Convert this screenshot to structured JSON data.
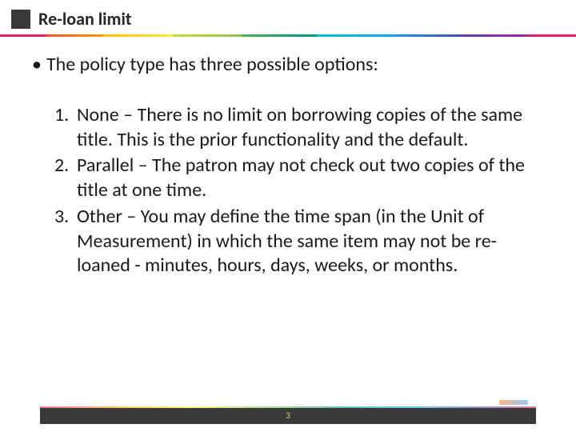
{
  "header": {
    "title": "Re-loan limit",
    "title_block_color": "#3a3a3a",
    "title_font_size": 22,
    "title_font_weight": 700
  },
  "content": {
    "intro_bullet": "•",
    "intro_text": "The policy type has three possible options:",
    "body_font_size": 24,
    "options": [
      "None – There is no limit on borrowing copies of the same title. This is the prior functionality and the default.",
      "Parallel – The patron may not check out two copies of the title at one time.",
      "Other – You may define the time span (in the Unit of Measurement) in which the same item may not be re-loaned - minutes, hours, days, weeks, or months."
    ]
  },
  "footer": {
    "page_number": "3",
    "bar_color": "#3a3a39",
    "page_number_color": "#d9c28b"
  },
  "colors": {
    "background": "#ffffff",
    "text": "#1a1a1a"
  }
}
